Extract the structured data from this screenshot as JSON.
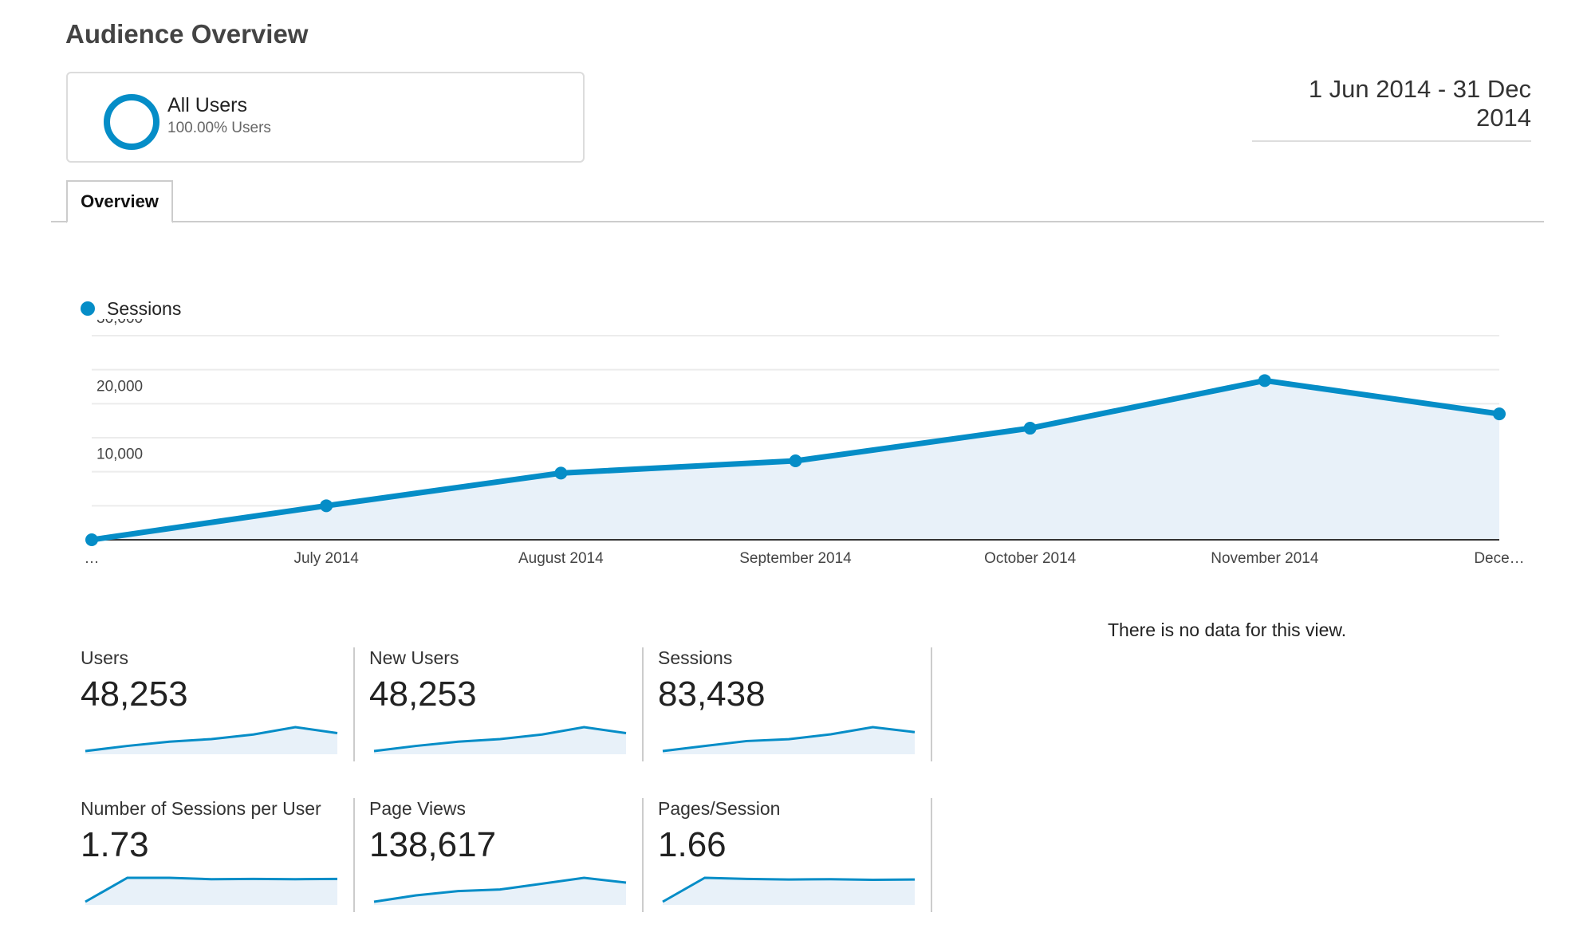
{
  "header": {
    "title": "Audience Overview",
    "date_range": "1 Jun 2014 - 31 Dec 2014"
  },
  "segment": {
    "name": "All Users",
    "subtitle": "100.00% Users",
    "color": "#058dc7",
    "icon": "segment-ring-icon"
  },
  "tabs": [
    {
      "label": "Overview",
      "active": true
    }
  ],
  "chart_data": {
    "type": "area",
    "legend": "top-left",
    "series": [
      {
        "name": "Sessions",
        "values": [
          0,
          5000,
          9800,
          11600,
          16400,
          23400,
          18500
        ],
        "color": "#058dc7"
      }
    ],
    "x_tick_labels": [
      "…",
      "July 2014",
      "August 2014",
      "September 2014",
      "October 2014",
      "November 2014",
      "Dece…"
    ],
    "y_tick_labels": [
      "30,000",
      "20,000",
      "10,000"
    ],
    "y_ticks": [
      30000,
      20000,
      10000
    ],
    "ylim": [
      0,
      30000
    ],
    "grid": true
  },
  "metrics": [
    {
      "label": "Users",
      "value": "48,253",
      "sparkline": [
        0,
        3000,
        5500,
        7000,
        9700,
        14000,
        10500
      ]
    },
    {
      "label": "New Users",
      "value": "48,253",
      "sparkline": [
        0,
        3000,
        5500,
        7000,
        9700,
        14000,
        10500
      ]
    },
    {
      "label": "Sessions",
      "value": "83,438",
      "sparkline": [
        0,
        5000,
        9800,
        11600,
        16400,
        23400,
        18500
      ]
    },
    {
      "label": "Number of Sessions per User",
      "value": "1.73",
      "sparkline": [
        1.0,
        1.86,
        1.86,
        1.81,
        1.82,
        1.81,
        1.82
      ]
    },
    {
      "label": "Page Views",
      "value": "138,617",
      "sparkline": [
        0,
        6000,
        10000,
        11500,
        17000,
        22500,
        18000
      ]
    },
    {
      "label": "Pages/Session",
      "value": "1.66",
      "sparkline": [
        1.0,
        1.86,
        1.82,
        1.8,
        1.81,
        1.79,
        1.8
      ]
    }
  ],
  "no_data_message": "There is no data for this view."
}
